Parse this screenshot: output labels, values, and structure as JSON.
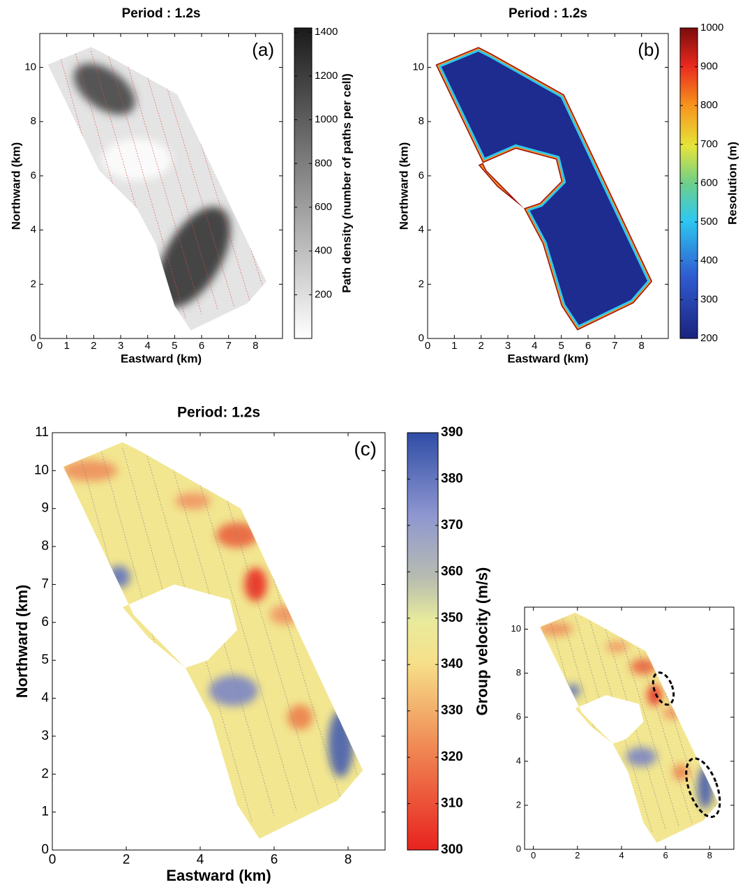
{
  "chart_data": [
    {
      "type": "heatmap",
      "title": "Period : 1.2s",
      "panel_label": "(a)",
      "x_label": "Eastward (km)",
      "y_label": "Northward (km)",
      "xlim": [
        0,
        9
      ],
      "ylim": [
        0,
        11.25
      ],
      "xticks": [
        0,
        1,
        2,
        3,
        4,
        5,
        6,
        7,
        8
      ],
      "yticks": [
        0,
        2,
        4,
        6,
        8,
        10
      ],
      "colorbar": {
        "label": "Path density (number of paths per cell)",
        "lim": [
          0,
          1420
        ],
        "ticks": [
          200,
          400,
          600,
          800,
          1000,
          1200,
          1400
        ],
        "colormap": "gray"
      }
    },
    {
      "type": "heatmap",
      "title": "Period : 1.2s",
      "panel_label": "(b)",
      "x_label": "Eastward (km)",
      "y_label": "Northward (km)",
      "xlim": [
        0,
        9
      ],
      "ylim": [
        0,
        11.25
      ],
      "xticks": [
        0,
        1,
        2,
        3,
        4,
        5,
        6,
        7,
        8
      ],
      "yticks": [
        0,
        2,
        4,
        6,
        8,
        10
      ],
      "colorbar": {
        "label": "Resolution (m)",
        "lim": [
          200,
          1000
        ],
        "ticks": [
          200,
          300,
          400,
          500,
          600,
          700,
          800,
          900,
          1000
        ],
        "colormap": "jet"
      }
    },
    {
      "type": "heatmap",
      "title": "Period: 1.2s",
      "panel_label": "(c)",
      "x_label": "Eastward (km)",
      "y_label": "Northward (km)",
      "xlim": [
        0,
        9
      ],
      "ylim": [
        0,
        11
      ],
      "xticks": [
        0,
        2,
        4,
        6,
        8
      ],
      "yticks": [
        0,
        1,
        2,
        3,
        4,
        5,
        6,
        7,
        8,
        9,
        10,
        11
      ],
      "colorbar": {
        "label": "Group velocity (m/s)",
        "lim": [
          300,
          390
        ],
        "ticks": [
          300,
          310,
          320,
          330,
          340,
          350,
          360,
          370,
          380,
          390
        ],
        "colormap": "velocity"
      }
    },
    {
      "type": "heatmap",
      "xlim": [
        -0.4,
        9.1
      ],
      "ylim": [
        0,
        11
      ],
      "xticks": [
        0,
        2,
        4,
        6,
        8
      ],
      "yticks": [
        0,
        2,
        4,
        6,
        8,
        10
      ]
    }
  ]
}
